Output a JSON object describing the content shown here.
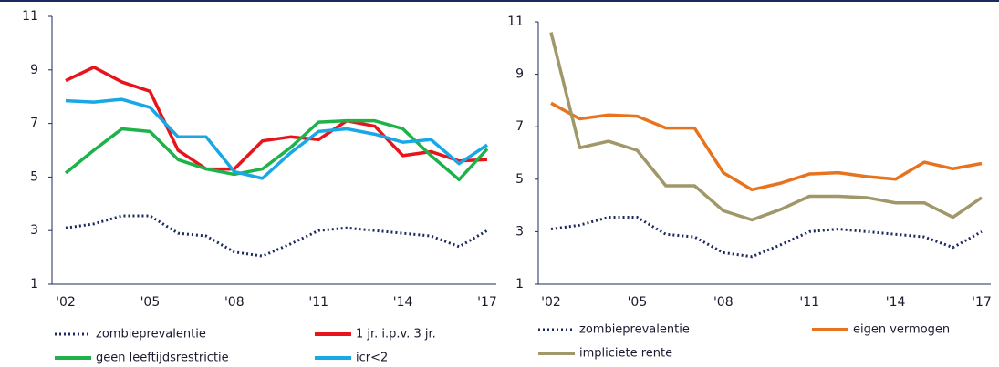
{
  "chart_data": [
    {
      "type": "line",
      "categories": [
        "'02",
        null,
        null,
        "'05",
        null,
        null,
        "'08",
        null,
        null,
        "'11",
        null,
        null,
        "'14",
        null,
        null,
        "'17"
      ],
      "ylim": [
        1,
        11
      ],
      "yticks": [
        1,
        3,
        5,
        7,
        9,
        11
      ],
      "series": [
        {
          "name": "zombieprevalentie",
          "color": "#1b2a5e",
          "dash": "dotted",
          "values": [
            3.1,
            3.25,
            3.55,
            3.55,
            2.9,
            2.8,
            2.2,
            2.05,
            2.5,
            3.0,
            3.1,
            3.0,
            2.9,
            2.8,
            2.4,
            3.0
          ]
        },
        {
          "name": "1 jr. i.p.v. 3 jr.",
          "color": "#e8141c",
          "values": [
            8.6,
            9.1,
            8.55,
            8.2,
            6.0,
            5.3,
            5.3,
            6.35,
            6.5,
            6.4,
            7.1,
            6.9,
            5.8,
            5.95,
            5.6,
            5.65
          ]
        },
        {
          "name": "geen leeftijdsrestrictie",
          "color": "#1fb24a",
          "values": [
            5.15,
            6.0,
            6.8,
            6.7,
            5.65,
            5.3,
            5.1,
            5.3,
            6.1,
            7.05,
            7.1,
            7.1,
            6.8,
            5.8,
            4.9,
            6.05
          ]
        },
        {
          "name": "icr<2",
          "color": "#1aa7e6",
          "values": [
            7.85,
            7.8,
            7.9,
            7.6,
            6.5,
            6.5,
            5.2,
            4.95,
            5.9,
            6.7,
            6.8,
            6.6,
            6.3,
            6.4,
            5.5,
            6.2
          ]
        }
      ]
    },
    {
      "type": "line",
      "categories": [
        "'02",
        null,
        null,
        "'05",
        null,
        null,
        "'08",
        null,
        null,
        "'11",
        null,
        null,
        "'14",
        null,
        null,
        "'17"
      ],
      "ylim": [
        1,
        11
      ],
      "yticks": [
        1,
        3,
        5,
        7,
        9,
        11
      ],
      "series": [
        {
          "name": "zombieprevalentie",
          "color": "#1b2a5e",
          "dash": "dotted",
          "values": [
            3.1,
            3.25,
            3.55,
            3.55,
            2.9,
            2.8,
            2.2,
            2.05,
            2.5,
            3.0,
            3.1,
            3.0,
            2.9,
            2.8,
            2.4,
            3.0
          ]
        },
        {
          "name": "eigen vermogen",
          "color": "#e8731f",
          "values": [
            7.9,
            7.3,
            7.45,
            7.4,
            6.95,
            6.95,
            5.25,
            4.6,
            4.85,
            5.2,
            5.25,
            5.1,
            5.0,
            5.65,
            5.4,
            5.6
          ]
        },
        {
          "name": "impliciete rente",
          "color": "#a09868",
          "values": [
            10.6,
            6.2,
            6.45,
            6.1,
            4.75,
            4.75,
            3.8,
            3.45,
            3.85,
            4.35,
            4.35,
            4.3,
            4.1,
            4.1,
            3.55,
            4.3
          ]
        }
      ]
    }
  ]
}
